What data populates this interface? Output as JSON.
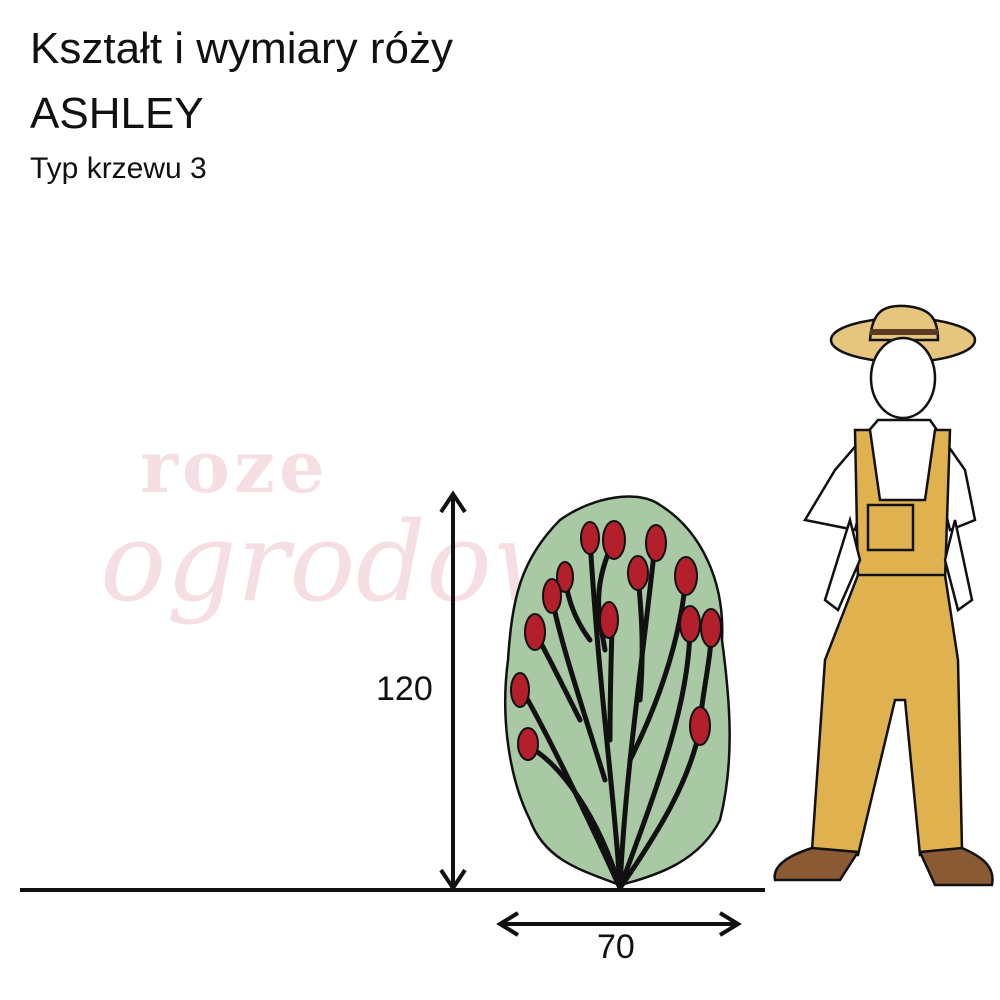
{
  "header": {
    "title": "Kształt i wymiary róży",
    "variety": "ASHLEY",
    "shrub_type": "Typ krzewu 3"
  },
  "dimensions": {
    "height": "120",
    "width": "70"
  },
  "watermark": {
    "line1": "roze",
    "line2": "ogrodowe"
  },
  "colors": {
    "foliage": "#a9c8a4",
    "flowers": "#b3202b",
    "overalls": "#e0b24f",
    "watermark": "#e7a5ae"
  }
}
